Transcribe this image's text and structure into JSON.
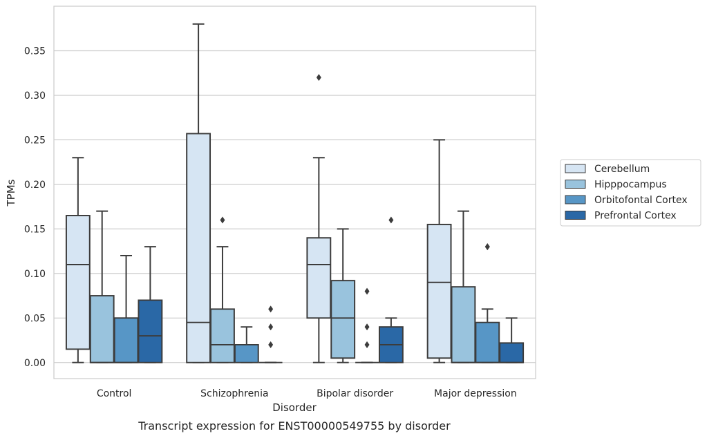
{
  "caption": "Transcript expression for ENST00000549755 by disorder",
  "chart_data": {
    "type": "box",
    "xlabel": "Disorder",
    "ylabel": "TPMs",
    "ylim": [
      -0.018,
      0.4
    ],
    "yticks": [
      "0.00",
      "0.05",
      "0.10",
      "0.15",
      "0.20",
      "0.25",
      "0.30",
      "0.35"
    ],
    "grid": true,
    "legend_position": "right",
    "categories": [
      "Control",
      "Schizophrenia",
      "Bipolar disorder",
      "Major depression"
    ],
    "series": [
      {
        "name": "Cerebellum",
        "color": "#d6e5f3",
        "boxes": [
          {
            "min": 0.0,
            "q1": 0.015,
            "median": 0.11,
            "q3": 0.165,
            "max": 0.23,
            "outliers": []
          },
          {
            "min": 0.0,
            "q1": 0.0,
            "median": 0.045,
            "q3": 0.257,
            "max": 0.38,
            "outliers": []
          },
          {
            "min": 0.0,
            "q1": 0.05,
            "median": 0.11,
            "q3": 0.14,
            "max": 0.23,
            "outliers": [
              0.32
            ]
          },
          {
            "min": 0.0,
            "q1": 0.005,
            "median": 0.09,
            "q3": 0.155,
            "max": 0.25,
            "outliers": []
          }
        ]
      },
      {
        "name": "Hipppocampus",
        "color": "#99c3dd",
        "boxes": [
          {
            "min": 0.0,
            "q1": 0.0,
            "median": 0.0,
            "q3": 0.075,
            "max": 0.17,
            "outliers": []
          },
          {
            "min": 0.0,
            "q1": 0.0,
            "median": 0.02,
            "q3": 0.06,
            "max": 0.13,
            "outliers": [
              0.16
            ]
          },
          {
            "min": 0.0,
            "q1": 0.005,
            "median": 0.05,
            "q3": 0.092,
            "max": 0.15,
            "outliers": []
          },
          {
            "min": 0.0,
            "q1": 0.0,
            "median": 0.0,
            "q3": 0.085,
            "max": 0.17,
            "outliers": []
          }
        ]
      },
      {
        "name": "Orbitofontal Cortex",
        "color": "#5796c6",
        "boxes": [
          {
            "min": 0.0,
            "q1": 0.0,
            "median": 0.0,
            "q3": 0.05,
            "max": 0.12,
            "outliers": []
          },
          {
            "min": 0.0,
            "q1": 0.0,
            "median": 0.02,
            "q3": 0.02,
            "max": 0.04,
            "outliers": []
          },
          {
            "min": 0.0,
            "q1": 0.0,
            "median": 0.0,
            "q3": 0.0,
            "max": 0.0,
            "outliers": [
              0.02,
              0.04,
              0.08
            ]
          },
          {
            "min": 0.0,
            "q1": 0.0,
            "median": 0.0,
            "q3": 0.045,
            "max": 0.06,
            "outliers": [
              0.13,
              0.13
            ]
          }
        ]
      },
      {
        "name": "Prefrontal Cortex",
        "color": "#2a68a6",
        "boxes": [
          {
            "min": 0.0,
            "q1": 0.0,
            "median": 0.03,
            "q3": 0.07,
            "max": 0.13,
            "outliers": []
          },
          {
            "min": 0.0,
            "q1": 0.0,
            "median": 0.0,
            "q3": 0.0,
            "max": 0.0,
            "outliers": [
              0.02,
              0.04,
              0.06
            ]
          },
          {
            "min": 0.0,
            "q1": 0.0,
            "median": 0.02,
            "q3": 0.04,
            "max": 0.05,
            "outliers": [
              0.16
            ]
          },
          {
            "min": 0.0,
            "q1": 0.0,
            "median": 0.0,
            "q3": 0.022,
            "max": 0.05,
            "outliers": []
          }
        ]
      }
    ]
  }
}
